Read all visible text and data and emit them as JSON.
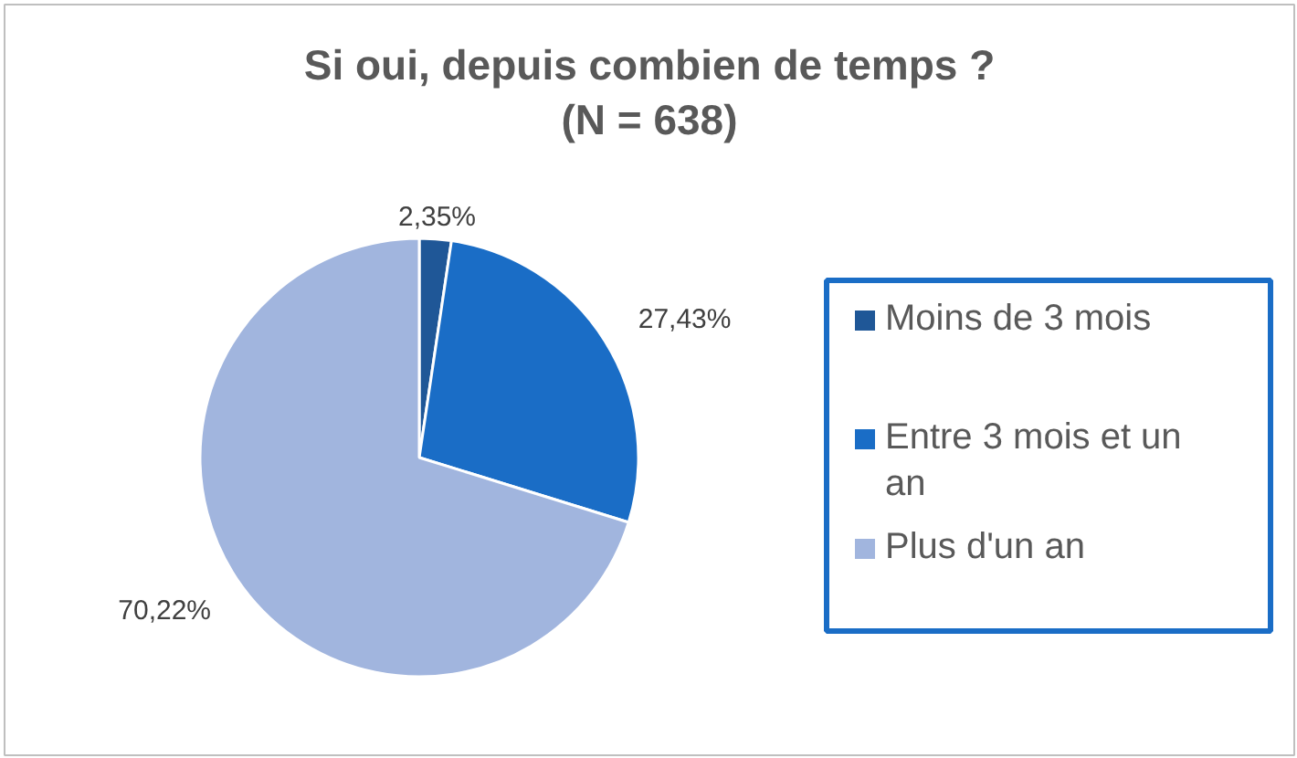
{
  "chart_data": {
    "type": "pie",
    "title": "Si oui, depuis combien de temps ?\n(N = 638)",
    "categories": [
      "Moins de 3 mois",
      "Entre 3 mois et un an",
      "Plus d'un an"
    ],
    "values": [
      2.35,
      27.43,
      70.22
    ],
    "colors": [
      "#1f5797",
      "#1a6dc6",
      "#a1b5de"
    ],
    "value_labels": [
      "2,35%",
      "27,43%",
      "70,22%"
    ],
    "legend": "right"
  }
}
